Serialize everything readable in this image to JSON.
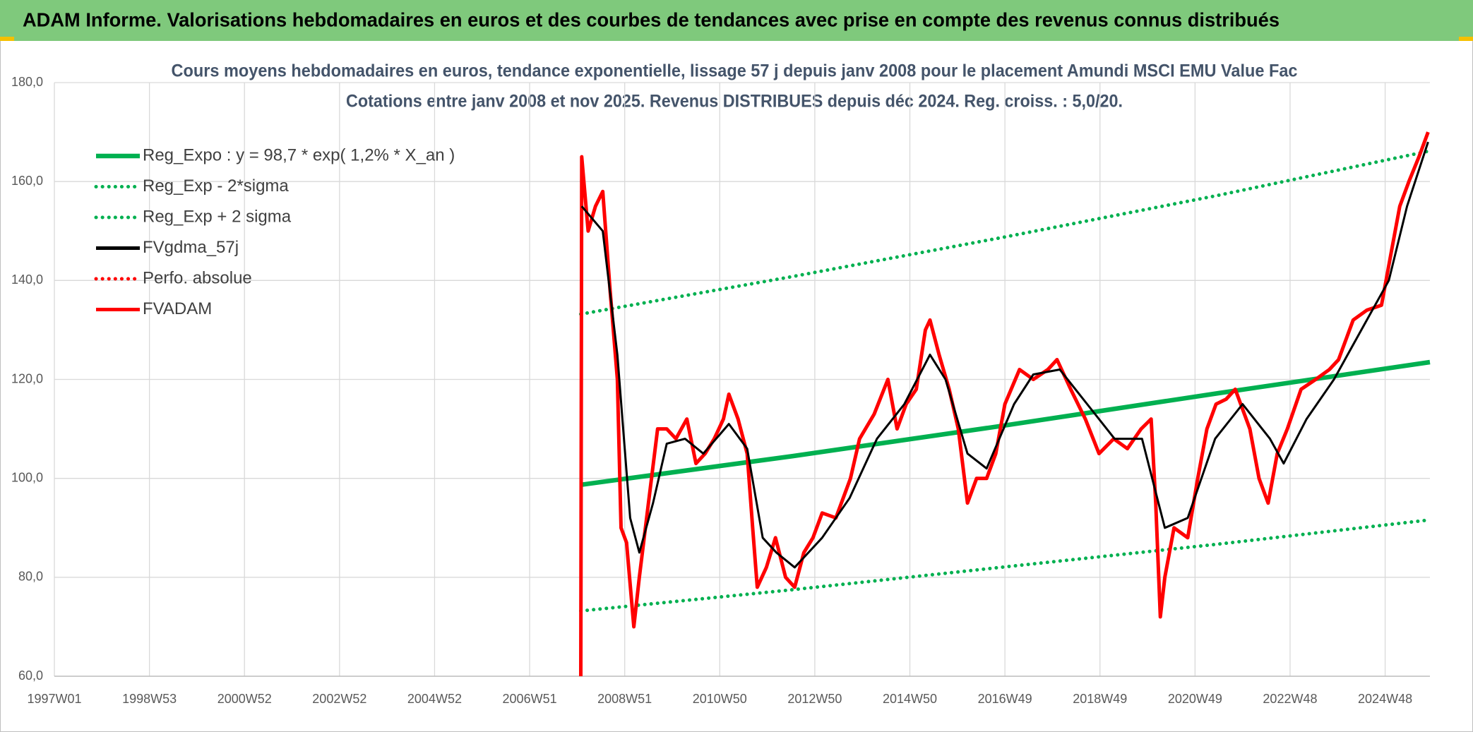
{
  "header": {
    "title": "ADAM Informe. Valorisations hebdomadaires en euros et des courbes de tendances avec prise en compte des revenus connus distribués"
  },
  "chart_data": {
    "type": "line",
    "title": "Cours moyens hebdomadaires en euros, tendance exponentielle, lissage 57 j depuis janv 2008 pour le placement Amundi MSCI EMU Value Fac",
    "subtitle": "Cotations entre janv 2008 et nov 2025. Revenus DISTRIBUES depuis déc 2024. Reg. croiss. : 5,0/20.",
    "xlim": [
      0,
      1505
    ],
    "xticks": [
      {
        "value": 0,
        "label": "1997W01"
      },
      {
        "value": 104,
        "label": "1998W53"
      },
      {
        "value": 208,
        "label": "2000W52"
      },
      {
        "value": 312,
        "label": "2002W52"
      },
      {
        "value": 416,
        "label": "2004W52"
      },
      {
        "value": 520,
        "label": "2006W51"
      },
      {
        "value": 624,
        "label": "2008W51"
      },
      {
        "value": 728,
        "label": "2010W50"
      },
      {
        "value": 832,
        "label": "2012W50"
      },
      {
        "value": 936,
        "label": "2014W50"
      },
      {
        "value": 1040,
        "label": "2016W49"
      },
      {
        "value": 1144,
        "label": "2018W49"
      },
      {
        "value": 1248,
        "label": "2020W49"
      },
      {
        "value": 1352,
        "label": "2022W48"
      },
      {
        "value": 1456,
        "label": "2024W48"
      }
    ],
    "ylim": [
      60,
      180
    ],
    "yticks": [
      {
        "value": 60,
        "label": "60,0"
      },
      {
        "value": 80,
        "label": "80,0"
      },
      {
        "value": 100,
        "label": "100,0"
      },
      {
        "value": 120,
        "label": "120,0"
      },
      {
        "value": 140,
        "label": "140,0"
      },
      {
        "value": 160,
        "label": "160,0"
      },
      {
        "value": 180,
        "label": "180,0"
      }
    ],
    "grid": true,
    "legend": "upper left",
    "series": [
      {
        "name": "Reg_Expo : y = 98,7 * exp( 1,2% *  X_an )",
        "color": "#00b050",
        "style": "solid",
        "x": [
          576,
          808,
          1040,
          1273,
          1505
        ],
        "values": [
          98.7,
          104.5,
          110.7,
          117.2,
          123.5
        ]
      },
      {
        "name": "Reg_Exp - 2*sigma",
        "color": "#00b050",
        "style": "dotted",
        "x": [
          576,
          808,
          1040,
          1273,
          1505
        ],
        "values": [
          73.2,
          77.5,
          82.1,
          86.7,
          91.6
        ]
      },
      {
        "name": "Reg_Exp + 2 sigma",
        "color": "#00b050",
        "style": "dotted",
        "x": [
          576,
          808,
          1040,
          1273,
          1505
        ],
        "values": [
          133.2,
          140.8,
          148.8,
          157.2,
          166.2
        ]
      },
      {
        "name": "FVgdma_57j",
        "color": "#000000",
        "style": "thin",
        "x": [
          577,
          600,
          616,
          630,
          640,
          655,
          670,
          690,
          710,
          738,
          758,
          775,
          790,
          810,
          840,
          870,
          900,
          930,
          958,
          975,
          999,
          1020,
          1050,
          1071,
          1100,
          1130,
          1160,
          1190,
          1215,
          1240,
          1270,
          1300,
          1330,
          1345,
          1370,
          1400,
          1430,
          1460,
          1480,
          1503
        ],
        "values": [
          155,
          150,
          125,
          92,
          85,
          95,
          107,
          108,
          105,
          111,
          106,
          88,
          85,
          82,
          88,
          96,
          108,
          115,
          125,
          120,
          105,
          102,
          115,
          121,
          122,
          115,
          108,
          108,
          90,
          92,
          108,
          115,
          108,
          103,
          112,
          120,
          130,
          140,
          155,
          168
        ]
      },
      {
        "name": "Perfo. absolue",
        "color": "#ff0000",
        "style": "dotted",
        "x": [],
        "values": []
      },
      {
        "name": "FVADAM",
        "color": "#ff0000",
        "style": "solid",
        "x": [
          576,
          577,
          584,
          592,
          600,
          608,
          616,
          620,
          626,
          634,
          640,
          650,
          660,
          670,
          680,
          692,
          702,
          712,
          722,
          732,
          738,
          748,
          758,
          764,
          769,
          779,
          789,
          800,
          810,
          820,
          830,
          840,
          855,
          871,
          881,
          897,
          912,
          922,
          932,
          943,
          953,
          958,
          968,
          979,
          989,
          999,
          1009,
          1020,
          1030,
          1040,
          1056,
          1071,
          1087,
          1097,
          1112,
          1128,
          1143,
          1159,
          1174,
          1189,
          1200,
          1205,
          1210,
          1215,
          1225,
          1240,
          1251,
          1261,
          1271,
          1282,
          1292,
          1308,
          1318,
          1328,
          1338,
          1349,
          1364,
          1380,
          1395,
          1405,
          1421,
          1436,
          1452,
          1462,
          1472,
          1482,
          1493,
          1503
        ],
        "values": [
          60,
          165,
          150,
          155,
          158,
          138,
          120,
          90,
          87,
          70,
          80,
          95,
          110,
          110,
          108,
          112,
          103,
          105,
          108,
          112,
          117,
          112,
          105,
          90,
          78,
          82,
          88,
          80,
          78,
          85,
          88,
          93,
          92,
          100,
          108,
          113,
          120,
          110,
          115,
          118,
          130,
          132,
          125,
          118,
          110,
          95,
          100,
          100,
          105,
          115,
          122,
          120,
          122,
          124,
          118,
          112,
          105,
          108,
          106,
          110,
          112,
          95,
          72,
          80,
          90,
          88,
          100,
          110,
          115,
          116,
          118,
          110,
          100,
          95,
          105,
          110,
          118,
          120,
          122,
          124,
          132,
          134,
          135,
          145,
          155,
          160,
          165,
          170
        ]
      }
    ]
  }
}
